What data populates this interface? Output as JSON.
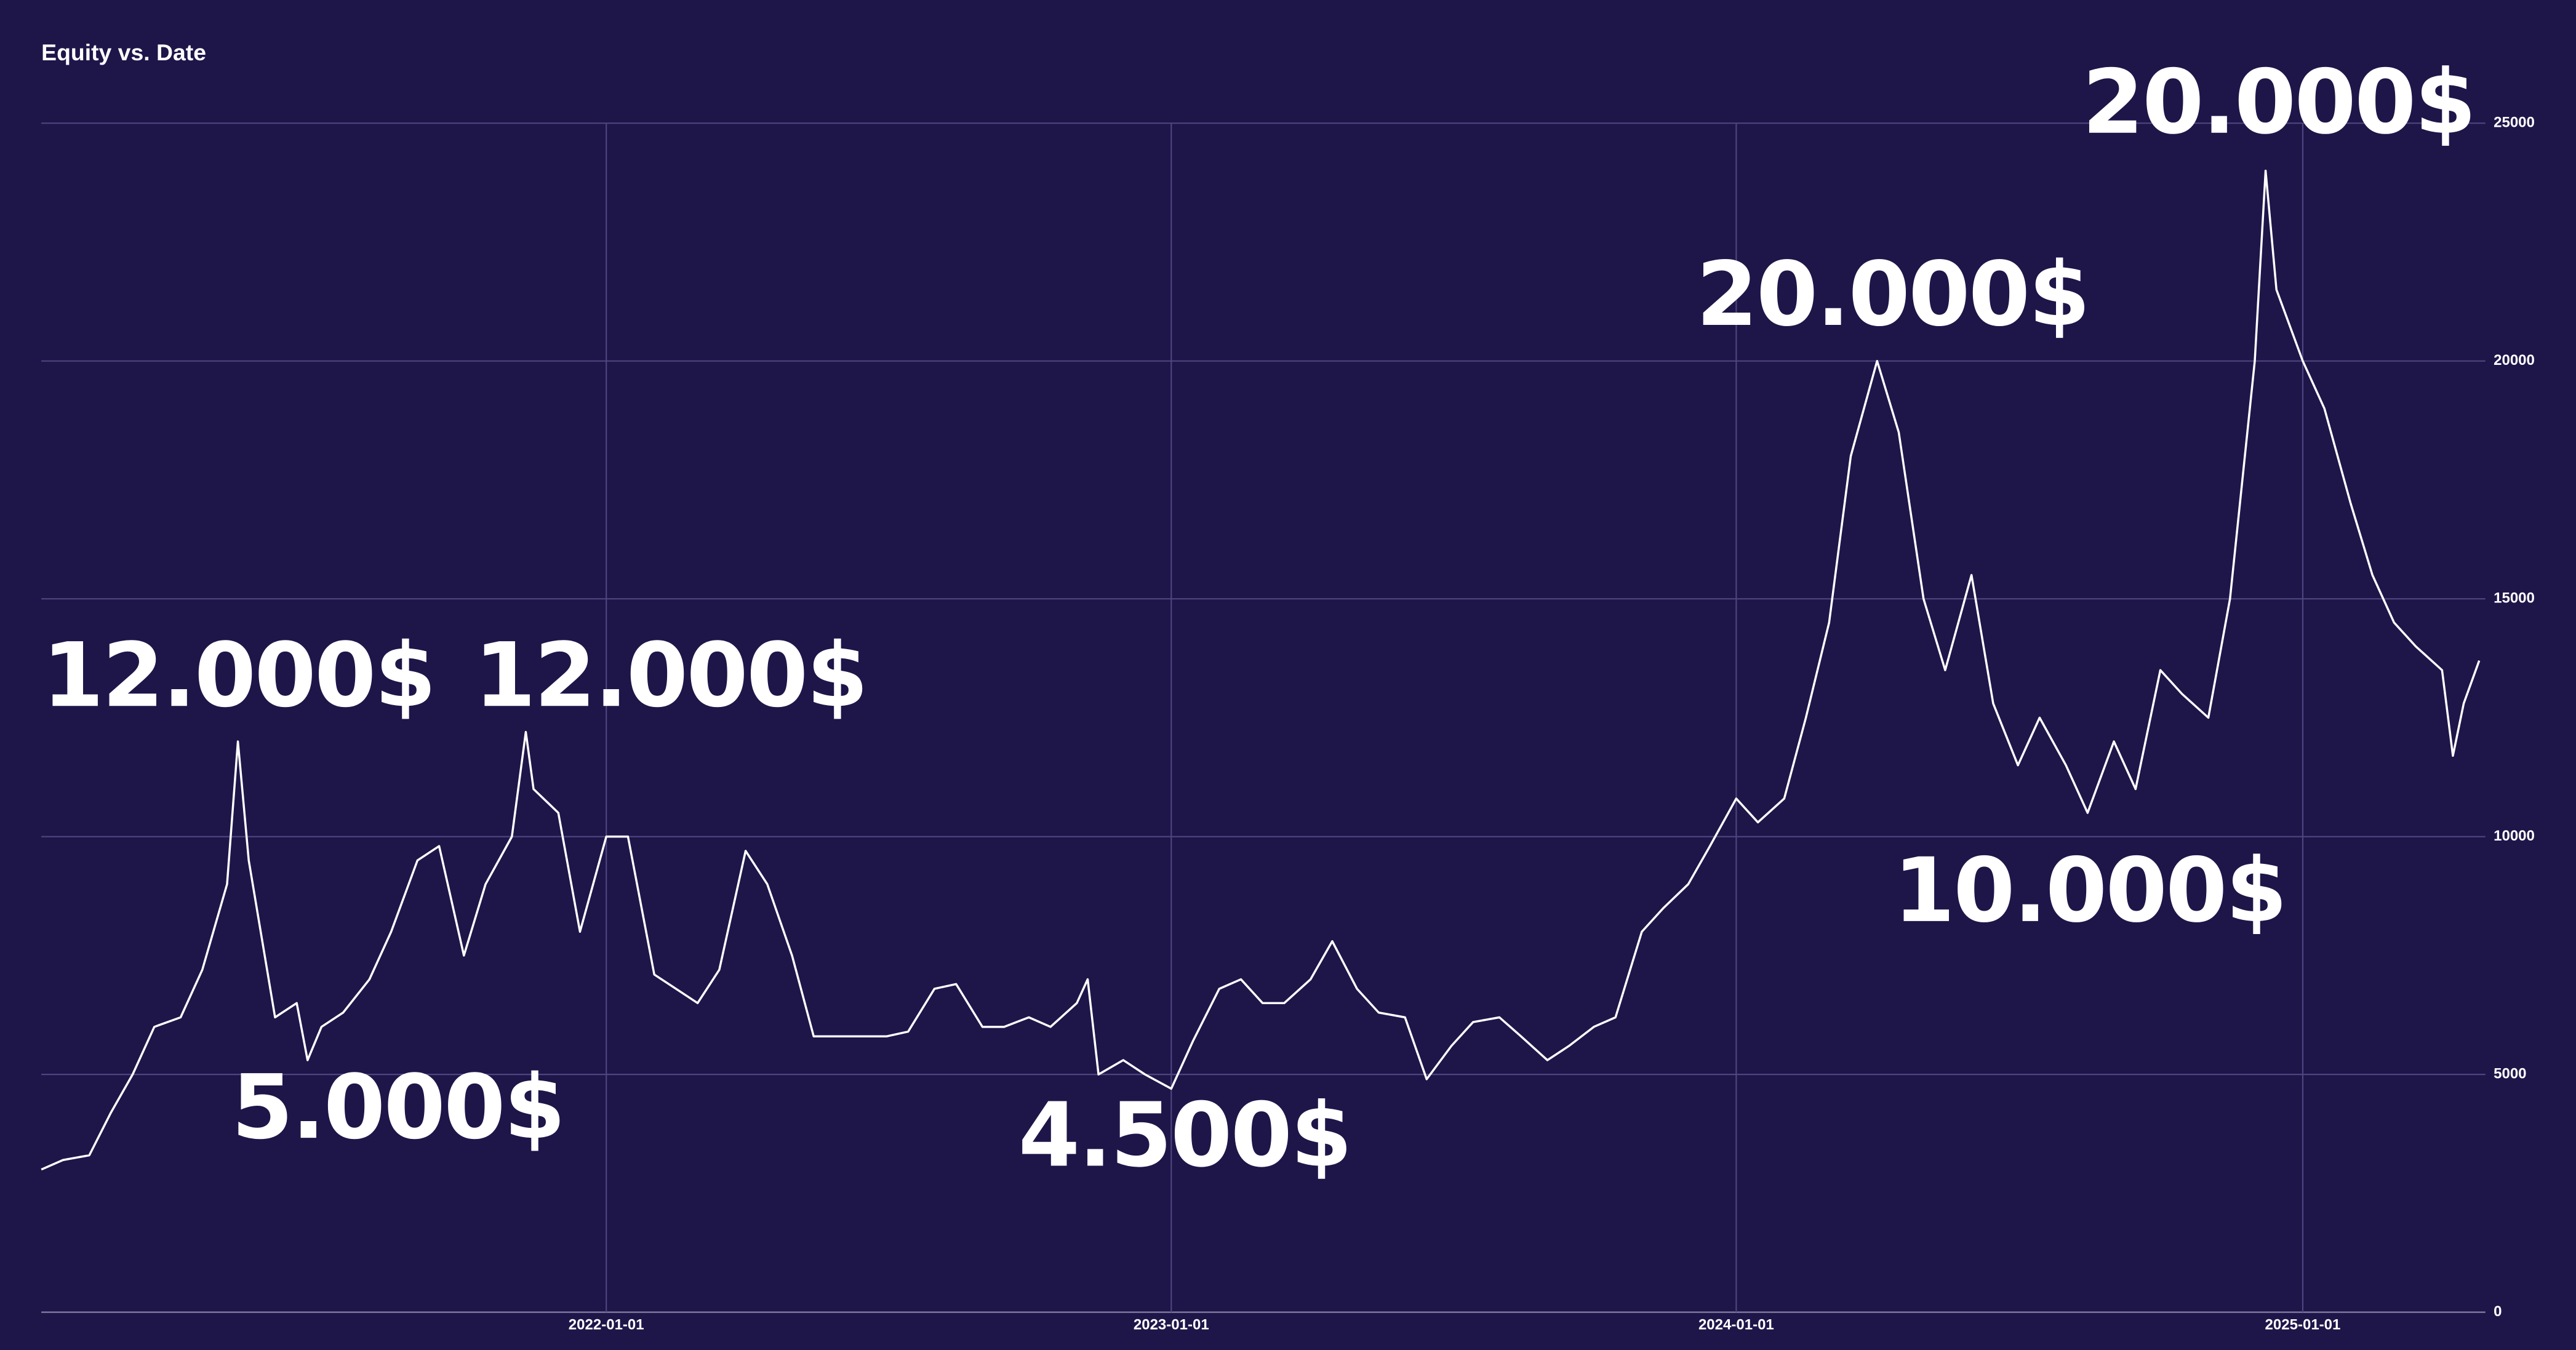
{
  "chart_data": {
    "type": "line",
    "title": "Equity vs. Date",
    "color": "#ffffff",
    "x": [
      "2021-01-01",
      "2021-01-15",
      "2021-02-01",
      "2021-02-15",
      "2021-03-01",
      "2021-03-15",
      "2021-04-01",
      "2021-04-15",
      "2021-05-01",
      "2021-05-08",
      "2021-05-15",
      "2021-06-01",
      "2021-06-15",
      "2021-06-22",
      "2021-07-01",
      "2021-07-15",
      "2021-08-01",
      "2021-08-15",
      "2021-09-01",
      "2021-09-15",
      "2021-10-01",
      "2021-10-15",
      "2021-11-01",
      "2021-11-10",
      "2021-11-15",
      "2021-12-01",
      "2021-12-15",
      "2022-01-01",
      "2022-01-15",
      "2022-02-01",
      "2022-02-15",
      "2022-03-01",
      "2022-03-15",
      "2022-04-01",
      "2022-04-15",
      "2022-05-01",
      "2022-05-15",
      "2022-06-01",
      "2022-06-15",
      "2022-07-01",
      "2022-07-15",
      "2022-08-01",
      "2022-08-15",
      "2022-09-01",
      "2022-09-15",
      "2022-10-01",
      "2022-10-15",
      "2022-11-01",
      "2022-11-08",
      "2022-11-15",
      "2022-12-01",
      "2022-12-15",
      "2023-01-01",
      "2023-01-15",
      "2023-02-01",
      "2023-02-15",
      "2023-03-01",
      "2023-03-15",
      "2023-04-01",
      "2023-04-15",
      "2023-05-01",
      "2023-05-15",
      "2023-06-01",
      "2023-06-15",
      "2023-07-01",
      "2023-07-15",
      "2023-08-01",
      "2023-08-15",
      "2023-09-01",
      "2023-09-15",
      "2023-10-01",
      "2023-10-15",
      "2023-11-01",
      "2023-11-15",
      "2023-12-01",
      "2023-12-15",
      "2024-01-01",
      "2024-01-15",
      "2024-02-01",
      "2024-02-15",
      "2024-03-01",
      "2024-03-15",
      "2024-04-01",
      "2024-04-15",
      "2024-05-01",
      "2024-05-15",
      "2024-06-01",
      "2024-06-15",
      "2024-07-01",
      "2024-07-15",
      "2024-08-01",
      "2024-08-15",
      "2024-09-01",
      "2024-09-15",
      "2024-10-01",
      "2024-10-15",
      "2024-11-01",
      "2024-11-15",
      "2024-12-01",
      "2024-12-08",
      "2024-12-15",
      "2025-01-01",
      "2025-01-15",
      "2025-02-01",
      "2025-02-15",
      "2025-03-01",
      "2025-03-15",
      "2025-04-01",
      "2025-04-08",
      "2025-04-15",
      "2025-04-25"
    ],
    "values": [
      3000,
      3200,
      3300,
      4200,
      5000,
      6000,
      6200,
      7200,
      9000,
      12000,
      9500,
      6200,
      6500,
      5300,
      6000,
      6300,
      7000,
      8000,
      9500,
      9800,
      7500,
      9000,
      10000,
      12200,
      11000,
      10500,
      8000,
      10000,
      10000,
      7100,
      6800,
      6500,
      7200,
      9700,
      9000,
      7500,
      5800,
      5800,
      5800,
      5800,
      5900,
      6800,
      6900,
      6000,
      6000,
      6200,
      6000,
      6500,
      7000,
      5000,
      5300,
      5000,
      4700,
      5700,
      6800,
      7000,
      6500,
      6500,
      7000,
      7800,
      6800,
      6300,
      6200,
      4900,
      5600,
      6100,
      6200,
      5800,
      5300,
      5600,
      6000,
      6200,
      8000,
      8500,
      9000,
      9800,
      10800,
      10300,
      10800,
      12500,
      14500,
      18000,
      20000,
      18500,
      15000,
      13500,
      15500,
      12800,
      11500,
      12500,
      11500,
      10500,
      12000,
      11000,
      13500,
      13000,
      12500,
      15000,
      20000,
      24000,
      21500,
      20000,
      19000,
      17000,
      15500,
      14500,
      14000,
      13500,
      11700,
      12800,
      13700
    ],
    "xlim": [
      "2021-01-01",
      "2025-04-29"
    ],
    "xticks": [
      "2022-01-01",
      "2023-01-01",
      "2024-01-01",
      "2025-01-01"
    ],
    "ylim": [
      0,
      25000
    ],
    "yticks": [
      0,
      5000,
      10000,
      15000,
      20000,
      25000
    ],
    "grid": true,
    "annotations": [
      "12.000$",
      "12.000$",
      "5.000$",
      "4.500$",
      "20.000$",
      "10.000$",
      "20.000$"
    ]
  }
}
